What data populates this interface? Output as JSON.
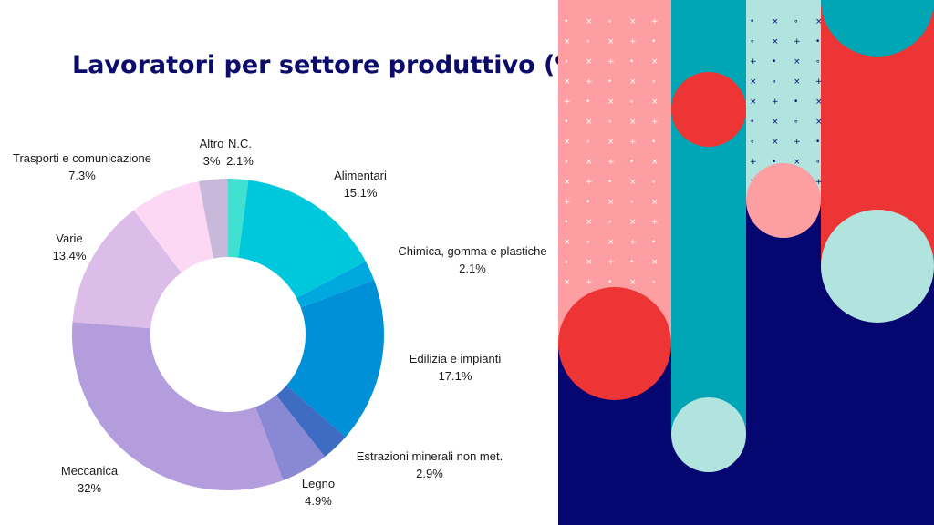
{
  "chart_data": {
    "type": "pie",
    "title": "Lavoratori per settore produttivo (%)",
    "donut": true,
    "slices": [
      {
        "label": "N.C.",
        "value": 2.1,
        "display": "2.1%",
        "color": "#3fe0d0"
      },
      {
        "label": "Alimentari",
        "value": 15.1,
        "display": "15.1%",
        "color": "#00c8dc"
      },
      {
        "label": "Chimica, gomma e plastiche",
        "value": 2.1,
        "display": "2.1%",
        "color": "#00a8e0"
      },
      {
        "label": "Edilizia e impianti",
        "value": 17.1,
        "display": "17.1%",
        "color": "#0090d8"
      },
      {
        "label": "Estrazioni minerali non met.",
        "value": 2.9,
        "display": "2.9%",
        "color": "#3d6cc2"
      },
      {
        "label": "Legno",
        "value": 4.9,
        "display": "4.9%",
        "color": "#8888d4"
      },
      {
        "label": "Meccanica",
        "value": 32,
        "display": "32%",
        "color": "#b39ddd"
      },
      {
        "label": "Varie",
        "value": 13.4,
        "display": "13.4%",
        "color": "#dcbce8"
      },
      {
        "label": "Trasporti e comunicazione",
        "value": 7.3,
        "display": "7.3%",
        "color": "#fcd8f4"
      },
      {
        "label": "Altro",
        "value": 3,
        "display": "3%",
        "color": "#c8b8da"
      }
    ]
  },
  "colors": {
    "title": "#0b0b6b",
    "navy": "#060670",
    "pink": "#fd9ea2",
    "teal": "#00a6b6",
    "mint": "#b1e4de",
    "red": "#ee3535"
  }
}
